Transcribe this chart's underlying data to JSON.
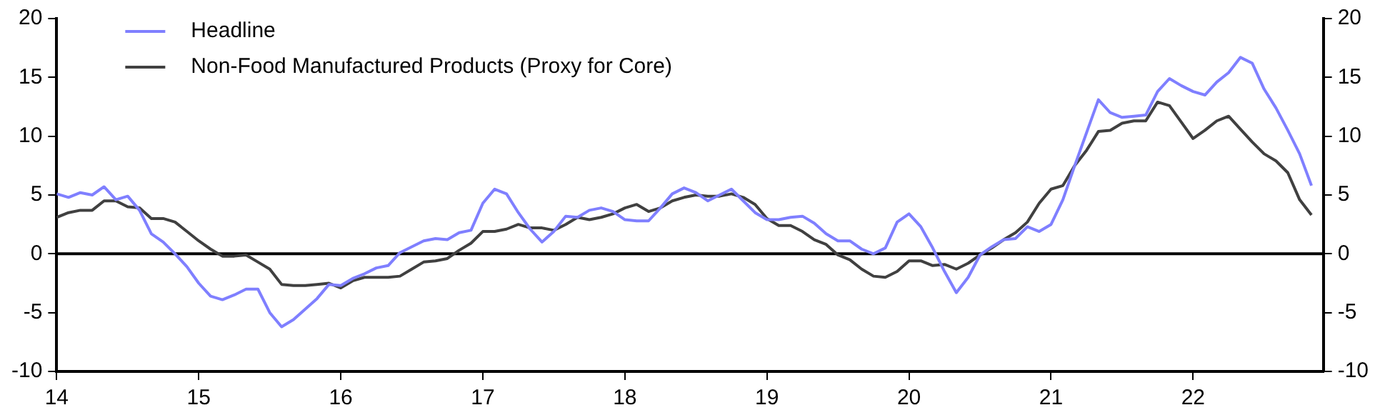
{
  "chart_data": {
    "type": "line",
    "legend": "top left",
    "marker": "none",
    "line_style": "solid",
    "grid": false,
    "x": [
      "2014-01",
      "2014-02",
      "2014-03",
      "2014-04",
      "2014-05",
      "2014-06",
      "2014-07",
      "2014-08",
      "2014-09",
      "2014-10",
      "2014-11",
      "2014-12",
      "2015-01",
      "2015-02",
      "2015-03",
      "2015-04",
      "2015-05",
      "2015-06",
      "2015-07",
      "2015-08",
      "2015-09",
      "2015-10",
      "2015-11",
      "2015-12",
      "2016-01",
      "2016-02",
      "2016-03",
      "2016-04",
      "2016-05",
      "2016-06",
      "2016-07",
      "2016-08",
      "2016-09",
      "2016-10",
      "2016-11",
      "2016-12",
      "2017-01",
      "2017-02",
      "2017-03",
      "2017-04",
      "2017-05",
      "2017-06",
      "2017-07",
      "2017-08",
      "2017-09",
      "2017-10",
      "2017-11",
      "2017-12",
      "2018-01",
      "2018-02",
      "2018-03",
      "2018-04",
      "2018-05",
      "2018-06",
      "2018-07",
      "2018-08",
      "2018-09",
      "2018-10",
      "2018-11",
      "2018-12",
      "2019-01",
      "2019-02",
      "2019-03",
      "2019-04",
      "2019-05",
      "2019-06",
      "2019-07",
      "2019-08",
      "2019-09",
      "2019-10",
      "2019-11",
      "2019-12",
      "2020-01",
      "2020-02",
      "2020-03",
      "2020-04",
      "2020-05",
      "2020-06",
      "2020-07",
      "2020-08",
      "2020-09",
      "2020-10",
      "2020-11",
      "2020-12",
      "2021-01",
      "2021-02",
      "2021-03",
      "2021-04",
      "2021-05",
      "2021-06",
      "2021-07",
      "2021-08",
      "2021-09",
      "2021-10",
      "2021-11",
      "2021-12",
      "2022-01",
      "2022-02",
      "2022-03",
      "2022-04",
      "2022-05",
      "2022-06",
      "2022-07",
      "2022-08",
      "2022-09",
      "2022-10",
      "2022-11"
    ],
    "series": [
      {
        "name": "Headline",
        "color": "#7f7fff",
        "values": [
          5.1,
          4.8,
          5.2,
          5.0,
          5.7,
          4.6,
          4.9,
          3.7,
          1.7,
          1.0,
          0.0,
          -1.1,
          -2.5,
          -3.6,
          -3.9,
          -3.5,
          -3.0,
          -3.0,
          -5.0,
          -6.2,
          -5.6,
          -4.7,
          -3.8,
          -2.6,
          -2.7,
          -2.1,
          -1.7,
          -1.2,
          -1.0,
          0.1,
          0.6,
          1.1,
          1.3,
          1.2,
          1.8,
          2.0,
          4.3,
          5.5,
          5.1,
          3.5,
          2.1,
          1.0,
          1.9,
          3.2,
          3.1,
          3.7,
          3.9,
          3.6,
          2.9,
          2.8,
          2.8,
          3.9,
          5.1,
          5.6,
          5.2,
          4.5,
          5.0,
          5.5,
          4.5,
          3.5,
          2.9,
          2.9,
          3.1,
          3.2,
          2.6,
          1.7,
          1.1,
          1.1,
          0.4,
          0.0,
          0.5,
          2.7,
          3.4,
          2.3,
          0.5,
          -1.5,
          -3.3,
          -2.0,
          -0.1,
          0.6,
          1.2,
          1.3,
          2.3,
          1.9,
          2.5,
          4.6,
          7.5,
          10.3,
          13.1,
          12.0,
          11.6,
          11.7,
          11.8,
          13.8,
          14.9,
          14.3,
          13.8,
          13.5,
          14.6,
          15.4,
          16.7,
          16.2,
          14.0,
          12.4,
          10.5,
          8.5,
          5.8
        ]
      },
      {
        "name": "Non-Food Manufactured Products (Proxy for Core)",
        "color": "#404040",
        "values": [
          3.1,
          3.5,
          3.7,
          3.7,
          4.5,
          4.5,
          4.0,
          3.9,
          3.0,
          3.0,
          2.7,
          1.9,
          1.1,
          0.4,
          -0.2,
          -0.2,
          -0.1,
          -0.7,
          -1.3,
          -2.6,
          -2.7,
          -2.7,
          -2.6,
          -2.5,
          -2.9,
          -2.3,
          -2.0,
          -2.0,
          -2.0,
          -1.9,
          -1.3,
          -0.7,
          -0.6,
          -0.4,
          0.3,
          0.9,
          1.9,
          1.9,
          2.1,
          2.5,
          2.2,
          2.2,
          2.0,
          2.5,
          3.1,
          2.9,
          3.1,
          3.4,
          3.9,
          4.2,
          3.6,
          3.9,
          4.5,
          4.8,
          5.0,
          4.9,
          4.9,
          5.1,
          4.8,
          4.2,
          3.0,
          2.4,
          2.4,
          1.9,
          1.2,
          0.8,
          -0.1,
          -0.5,
          -1.3,
          -1.9,
          -2.0,
          -1.5,
          -0.6,
          -0.6,
          -1.0,
          -0.9,
          -1.3,
          -0.8,
          -0.1,
          0.5,
          1.2,
          1.8,
          2.7,
          4.3,
          5.5,
          5.8,
          7.5,
          8.8,
          10.4,
          10.5,
          11.1,
          11.3,
          11.3,
          12.9,
          12.6,
          11.2,
          9.8,
          10.5,
          11.3,
          11.7,
          10.6,
          9.5,
          8.5,
          7.9,
          6.9,
          4.6,
          3.3
        ]
      }
    ],
    "xlim": [
      "2014-01",
      "2022-12"
    ],
    "xticks": [
      {
        "value": "2014",
        "label": "14"
      },
      {
        "value": "2015",
        "label": "15"
      },
      {
        "value": "2016",
        "label": "16"
      },
      {
        "value": "2017",
        "label": "17"
      },
      {
        "value": "2018",
        "label": "18"
      },
      {
        "value": "2019",
        "label": "19"
      },
      {
        "value": "2020",
        "label": "20"
      },
      {
        "value": "2021",
        "label": "21"
      },
      {
        "value": "2022",
        "label": "22"
      }
    ],
    "ylim": [
      -10,
      20
    ],
    "yticks": [
      -10,
      -5,
      0,
      5,
      10,
      15,
      20
    ],
    "y2lim": [
      -10,
      20
    ],
    "y2ticks": [
      -10,
      -5,
      0,
      5,
      10,
      15,
      20
    ],
    "ref_lines": [
      {
        "axis": "y",
        "value": 0,
        "color": "#000000"
      }
    ]
  }
}
